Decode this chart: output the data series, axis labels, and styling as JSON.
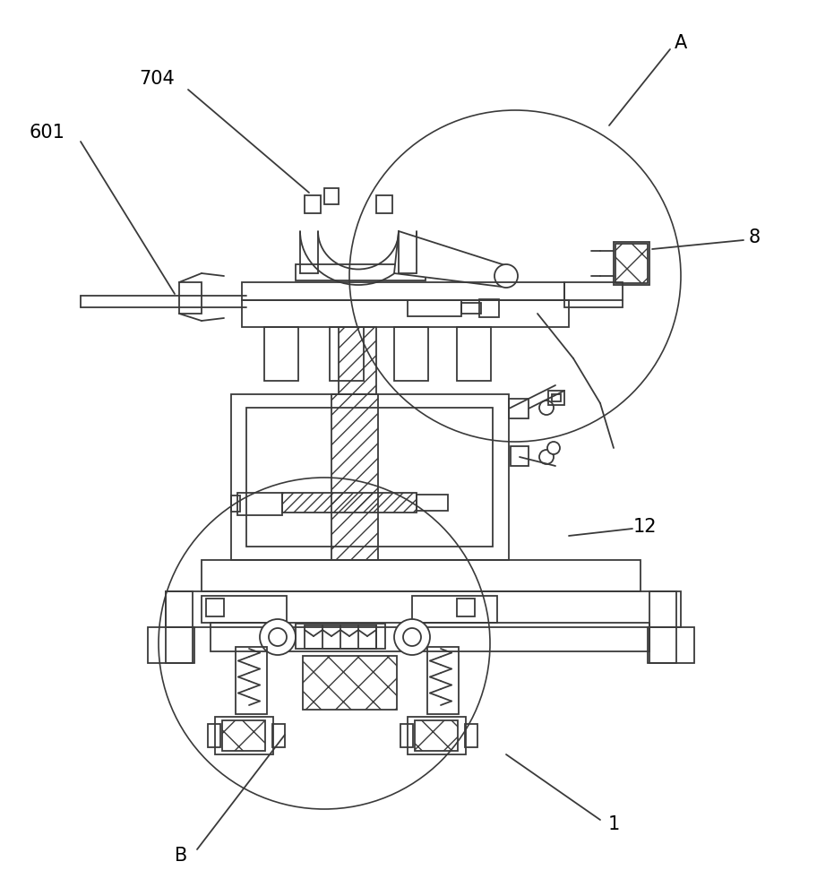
{
  "bg_color": "#ffffff",
  "line_color": "#3a3a3a",
  "lw": 1.3,
  "fig_width": 9.31,
  "fig_height": 10.0,
  "dpi": 100
}
